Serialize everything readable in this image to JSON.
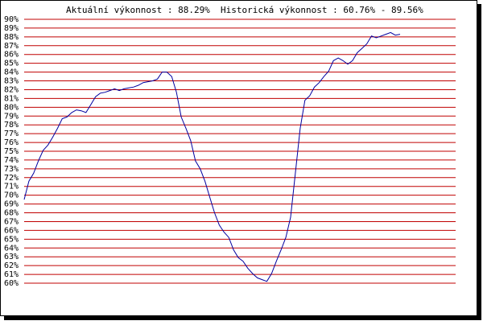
{
  "chart_data": {
    "type": "line",
    "title": "Aktuální výkonnost : 88.29%  Historická výkonnost : 60.76% - 89.56%",
    "ylim": [
      60,
      90
    ],
    "yticks": [
      {
        "value": 60,
        "label": "60%"
      },
      {
        "value": 61,
        "label": "61%"
      },
      {
        "value": 62,
        "label": "62%"
      },
      {
        "value": 63,
        "label": "63%"
      },
      {
        "value": 64,
        "label": "64%"
      },
      {
        "value": 65,
        "label": "65%"
      },
      {
        "value": 66,
        "label": "66%"
      },
      {
        "value": 67,
        "label": "67%"
      },
      {
        "value": 68,
        "label": "68%"
      },
      {
        "value": 69,
        "label": "69%"
      },
      {
        "value": 70,
        "label": "70%"
      },
      {
        "value": 71,
        "label": "71%"
      },
      {
        "value": 72,
        "label": "72%"
      },
      {
        "value": 73,
        "label": "73%"
      },
      {
        "value": 74,
        "label": "74%"
      },
      {
        "value": 75,
        "label": "75%"
      },
      {
        "value": 76,
        "label": "76%"
      },
      {
        "value": 77,
        "label": "77%"
      },
      {
        "value": 78,
        "label": "78%"
      },
      {
        "value": 79,
        "label": "79%"
      },
      {
        "value": 80,
        "label": "80%"
      },
      {
        "value": 81,
        "label": "81%"
      },
      {
        "value": 82,
        "label": "82%"
      },
      {
        "value": 83,
        "label": "83%"
      },
      {
        "value": 84,
        "label": "84%"
      },
      {
        "value": 85,
        "label": "85%"
      },
      {
        "value": 86,
        "label": "86%"
      },
      {
        "value": 87,
        "label": "87%"
      },
      {
        "value": 88,
        "label": "88%"
      },
      {
        "value": 89,
        "label": "89%"
      },
      {
        "value": 90,
        "label": "90%"
      }
    ],
    "grid": true,
    "grid_color": "#c00000",
    "color": "#0000a0",
    "values": [
      69.5,
      71.6,
      72.5,
      73.9,
      75.1,
      75.7,
      76.6,
      77.6,
      78.7,
      78.9,
      79.4,
      79.7,
      79.6,
      79.4,
      80.3,
      81.2,
      81.6,
      81.7,
      81.9,
      82.1,
      81.9,
      82.1,
      82.2,
      82.3,
      82.5,
      82.8,
      82.9,
      83.0,
      83.2,
      84.0,
      84.0,
      83.5,
      81.7,
      78.9,
      77.6,
      76.2,
      73.9,
      73.0,
      71.6,
      69.8,
      68.0,
      66.6,
      65.8,
      65.2,
      63.8,
      62.9,
      62.5,
      61.7,
      61.1,
      60.6,
      60.4,
      60.2,
      61.1,
      62.5,
      63.8,
      65.2,
      67.5,
      72.5,
      77.6,
      80.8,
      81.3,
      82.3,
      82.8,
      83.5,
      84.1,
      85.3,
      85.6,
      85.3,
      84.9,
      85.3,
      86.2,
      86.7,
      87.2,
      88.1,
      87.9,
      88.1,
      88.3,
      88.5,
      88.2,
      88.3
    ]
  }
}
